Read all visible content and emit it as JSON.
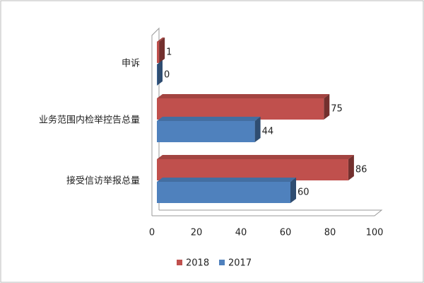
{
  "chart_data": {
    "type": "bar3d-horizontal",
    "categories": [
      "申诉",
      "业务范围内检举控告总量",
      "接受信访举报总量"
    ],
    "series": [
      {
        "name": "2018",
        "color": "#c0504d",
        "values": [
          1,
          75,
          86
        ]
      },
      {
        "name": "2017",
        "color": "#4f81bd",
        "values": [
          0,
          44,
          60
        ]
      }
    ],
    "xlim": [
      0,
      100
    ],
    "xticks": [
      0,
      20,
      40,
      60,
      80,
      100
    ],
    "legend": "bottom"
  }
}
